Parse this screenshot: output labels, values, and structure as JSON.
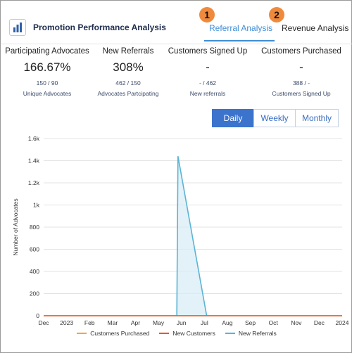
{
  "header": {
    "title": "Promotion Performance Analysis",
    "tabs": [
      {
        "label": "Referral Analysis",
        "active": true,
        "callout": "1"
      },
      {
        "label": "Revenue Analysis",
        "active": false,
        "callout": "2"
      }
    ]
  },
  "metrics": [
    {
      "label": "Participating Advocates",
      "value": "166.67%",
      "ratio": "150 / 90",
      "caption": "Unique Advocates"
    },
    {
      "label": "New Referrals",
      "value": "308%",
      "ratio": "462 / 150",
      "caption": "Advocates Partcipating"
    },
    {
      "label": "Customers Signed Up",
      "value": "-",
      "ratio": "- / 462",
      "caption": "New referrals"
    },
    {
      "label": "Customers Purchased",
      "value": "-",
      "ratio": "388 / -",
      "caption": "Customers Signed Up"
    }
  ],
  "granularity": {
    "options": [
      "Daily",
      "Weekly",
      "Monthly"
    ],
    "selected": "Daily"
  },
  "colors": {
    "accent": "#3f8ed6",
    "callout": "#ef8a3d",
    "customers_purchased": "#f2a540",
    "new_customers": "#e4572e",
    "new_referrals": "#5ab4d4"
  },
  "chart_data": {
    "type": "area",
    "ylabel": "Number of Advocates",
    "ylim": [
      0,
      1600
    ],
    "yticks": [
      0,
      200,
      400,
      600,
      800,
      1000,
      1200,
      1400,
      1600
    ],
    "ytick_labels": [
      "0",
      "200",
      "400",
      "600",
      "800",
      "1k",
      "1.2k",
      "1.4k",
      "1.6k"
    ],
    "xtick_labels": [
      "Dec",
      "2023",
      "Feb",
      "Mar",
      "Apr",
      "May",
      "Jun",
      "Jul",
      "Aug",
      "Sep",
      "Oct",
      "Nov",
      "Dec",
      "2024"
    ],
    "grid": true,
    "legend_position": "bottom",
    "series": [
      {
        "name": "Customers Purchased",
        "x": [
          0,
          13
        ],
        "values": [
          0,
          0
        ]
      },
      {
        "name": "New Customers",
        "x": [
          0,
          13
        ],
        "values": [
          0,
          0
        ]
      },
      {
        "name": "New Referrals",
        "x": [
          5.8,
          5.85,
          7.1
        ],
        "values": [
          0,
          1440,
          0
        ]
      }
    ]
  }
}
